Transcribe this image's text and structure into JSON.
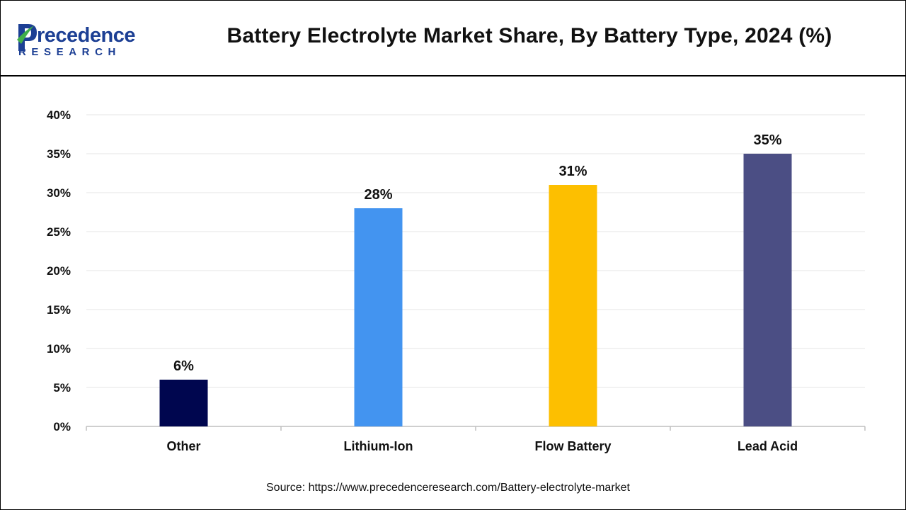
{
  "header": {
    "logo_word": "Precedence",
    "logo_sub": "RESEARCH",
    "title": "Battery Electrolyte Market Share, By Battery Type, 2024 (%)"
  },
  "colors": {
    "grid": "#e6e6e6",
    "axis": "#bfbfbf",
    "text": "#111111",
    "logo_blue": "#1c3f94",
    "logo_green": "#3fae49"
  },
  "chart_data": {
    "type": "bar",
    "title": "Battery Electrolyte Market Share, By Battery Type, 2024 (%)",
    "categories": [
      "Other",
      "Lithium-Ion",
      "Flow Battery",
      "Lead Acid"
    ],
    "values": [
      6,
      28,
      31,
      35
    ],
    "value_labels": [
      "6%",
      "28%",
      "31%",
      "35%"
    ],
    "bar_colors": [
      "#00064f",
      "#4394f0",
      "#fdbf00",
      "#4b4e84"
    ],
    "ylim": [
      0,
      40
    ],
    "yticks": [
      0,
      5,
      10,
      15,
      20,
      25,
      30,
      35,
      40
    ],
    "ytick_labels": [
      "0%",
      "5%",
      "10%",
      "15%",
      "20%",
      "25%",
      "30%",
      "35%",
      "40%"
    ],
    "xlabel": "",
    "ylabel": "",
    "grid": true
  },
  "footer": {
    "source": "Source: https://www.precedenceresearch.com/Battery-electrolyte-market"
  }
}
